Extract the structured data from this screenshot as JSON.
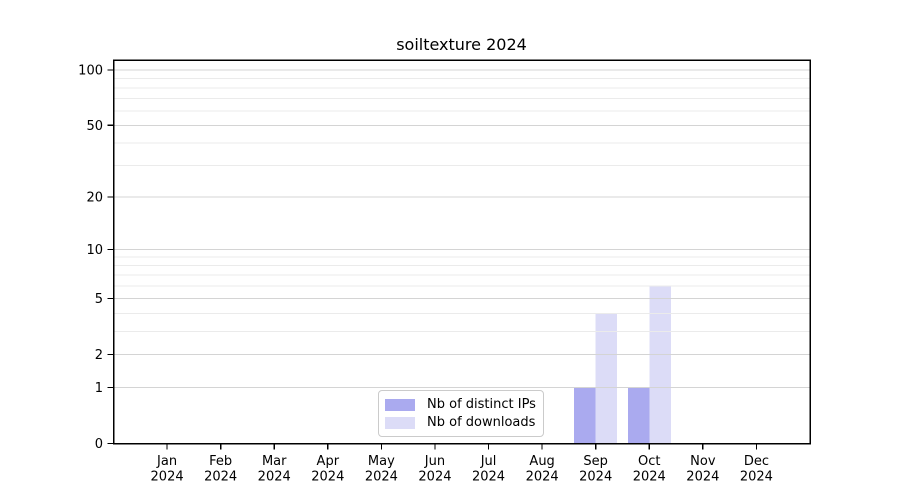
{
  "chart_data": {
    "type": "bar",
    "title": "soiltexture 2024",
    "categories": [
      "Jan",
      "Feb",
      "Mar",
      "Apr",
      "May",
      "Jun",
      "Jul",
      "Aug",
      "Sep",
      "Oct",
      "Nov",
      "Dec"
    ],
    "year_label": "2024",
    "series": [
      {
        "name": "Nb of distinct IPs",
        "color": "#aaaaef",
        "values": [
          0,
          0,
          0,
          0,
          0,
          0,
          0,
          0,
          1,
          1,
          0,
          0
        ]
      },
      {
        "name": "Nb of downloads",
        "color": "#dcdcf7",
        "values": [
          0,
          0,
          0,
          0,
          0,
          0,
          0,
          0,
          4,
          6,
          0,
          0
        ]
      }
    ],
    "xlabel": "",
    "ylabel": "",
    "y_scale": "log1p",
    "ylim": [
      0,
      113
    ],
    "y_ticks": [
      0,
      1,
      2,
      5,
      10,
      20,
      50,
      100
    ],
    "y_minor_gridlines": [
      3,
      4,
      6,
      7,
      8,
      9,
      30,
      40,
      60,
      70,
      80,
      90
    ],
    "grid": true,
    "legend_position": "lower center"
  },
  "colors": {
    "axis": "#000000",
    "tick_text": "#000000",
    "major_grid": "#d4d4d4",
    "minor_grid": "#ebebeb",
    "legend_border": "#cbcbcb",
    "background": "#ffffff"
  }
}
